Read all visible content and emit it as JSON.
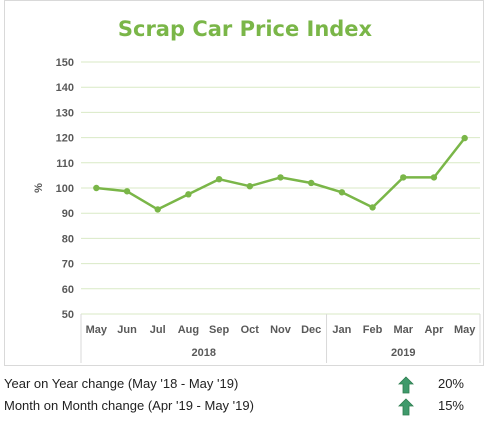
{
  "chart_data": {
    "type": "line",
    "title": "Scrap Car Price Index",
    "ylabel": "%",
    "ylim": [
      50,
      150
    ],
    "yticks": [
      50,
      60,
      70,
      80,
      90,
      100,
      110,
      120,
      130,
      140,
      150
    ],
    "categories": [
      "May",
      "Jun",
      "Jul",
      "Aug",
      "Sep",
      "Oct",
      "Nov",
      "Dec",
      "Jan",
      "Feb",
      "Mar",
      "Apr",
      "May"
    ],
    "year_groups": [
      {
        "label": "2018",
        "count": 8
      },
      {
        "label": "2019",
        "count": 5
      }
    ],
    "series": [
      {
        "values": [
          100,
          98.7,
          91.5,
          97.5,
          103.5,
          100.7,
          104.2,
          102,
          98.3,
          92.3,
          104.2,
          104.2,
          119.8
        ]
      }
    ],
    "grid": true,
    "line_color": "#7ab648",
    "grid_color": "#d9eac6"
  },
  "stats": [
    {
      "label": "Year on Year change (May '18 - May '19)",
      "value": "20%",
      "icon": "up-arrow-icon"
    },
    {
      "label": "Month on Month change (Apr '19 - May '19)",
      "value": "15%",
      "icon": "up-arrow-icon"
    }
  ]
}
